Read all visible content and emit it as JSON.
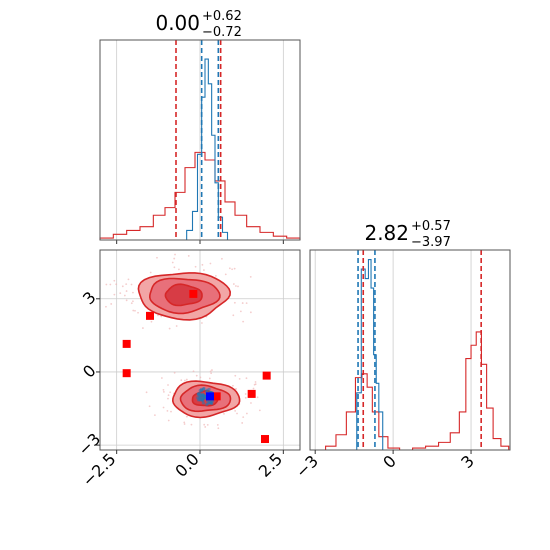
{
  "colors": {
    "prior": "#d62728",
    "posterior": "#1f77b4",
    "contour_fill_light": "#f2a6a6",
    "contour_fill_mid": "#e8707a",
    "contour_fill_dark": "#d73c45",
    "marker_red": "#ff0000",
    "marker_blue": "#0000ff",
    "grid": "#cccccc",
    "axes": "#555555"
  },
  "chart_data": [
    {
      "type": "histogram",
      "panel": "top-left marginal",
      "title_value": "0.00",
      "title_plus": "+0.62",
      "title_minus": "−0.72",
      "xlim": [
        -3.0,
        3.0
      ],
      "grid": true,
      "series": [
        {
          "color": "prior",
          "style": "step",
          "x": [
            -2.8,
            -2.4,
            -2.0,
            -1.6,
            -1.2,
            -0.9,
            -0.6,
            -0.3,
            0.0,
            0.3,
            0.6,
            0.9,
            1.2,
            1.6,
            2.0,
            2.4,
            2.8
          ],
          "values": [
            0.01,
            0.03,
            0.05,
            0.07,
            0.13,
            0.17,
            0.25,
            0.38,
            0.46,
            0.42,
            0.31,
            0.2,
            0.13,
            0.07,
            0.04,
            0.02,
            0.01
          ]
        },
        {
          "color": "posterior",
          "style": "step",
          "x": [
            -0.5,
            -0.3,
            -0.15,
            0.0,
            0.1,
            0.2,
            0.3,
            0.4,
            0.5,
            0.6,
            0.75,
            0.9
          ],
          "values": [
            0.0,
            0.05,
            0.15,
            0.45,
            0.75,
            0.95,
            0.82,
            0.55,
            0.3,
            0.12,
            0.04,
            0.0
          ]
        }
      ],
      "quantile_lines": [
        {
          "color": "prior",
          "x": -0.72
        },
        {
          "color": "prior",
          "x": 0.62
        },
        {
          "color": "posterior",
          "x": 0.05
        },
        {
          "color": "posterior",
          "x": 0.55
        }
      ]
    },
    {
      "type": "contour",
      "panel": "bottom-left joint",
      "xlim": [
        -3.0,
        3.0
      ],
      "ylim": [
        -3.2,
        5.0
      ],
      "x_ticks": [
        "−2.5",
        "0.0",
        "2.5"
      ],
      "x_tick_values": [
        -2.5,
        0.0,
        2.5
      ],
      "y_ticks": [
        "3",
        "0",
        "−3"
      ],
      "y_tick_values": [
        3,
        0,
        -3
      ],
      "grid": true,
      "modes": [
        {
          "cx": -0.5,
          "cy": 3.15,
          "rx": [
            1.35,
            1.05,
            0.55
          ],
          "ry": [
            0.95,
            0.7,
            0.42
          ]
        },
        {
          "cx": 0.15,
          "cy": -1.1,
          "rx": [
            1.0,
            0.75,
            0.38
          ],
          "ry": [
            0.72,
            0.52,
            0.3
          ]
        }
      ],
      "posterior_blob": {
        "cx": 0.2,
        "cy": -1.0,
        "rx": 0.28,
        "ry": 0.35
      },
      "red_markers": [
        {
          "x": -1.5,
          "y": 2.3
        },
        {
          "x": -0.2,
          "y": 3.2
        },
        {
          "x": -2.2,
          "y": 1.15
        },
        {
          "x": -2.2,
          "y": -0.05
        },
        {
          "x": 2.0,
          "y": -0.15
        },
        {
          "x": 1.55,
          "y": -0.9
        },
        {
          "x": 0.5,
          "y": -1.0
        },
        {
          "x": 1.95,
          "y": -2.75
        }
      ],
      "blue_marker": {
        "x": 0.3,
        "y": -1.0
      }
    },
    {
      "type": "histogram",
      "panel": "bottom-right marginal",
      "title_value": "2.82",
      "title_plus": "+0.57",
      "title_minus": "−3.97",
      "xlim": [
        -3.2,
        4.5
      ],
      "x_ticks": [
        "−3",
        "0",
        "3"
      ],
      "x_tick_values": [
        -3,
        0,
        3
      ],
      "grid": true,
      "series": [
        {
          "color": "prior",
          "style": "step",
          "x": [
            -2.8,
            -2.4,
            -2.0,
            -1.6,
            -1.3,
            -1.1,
            -0.9,
            -0.7,
            -0.4,
            0.0,
            0.5,
            1.0,
            1.5,
            2.0,
            2.4,
            2.7,
            2.9,
            3.1,
            3.3,
            3.5,
            3.7,
            4.0,
            4.3
          ],
          "values": [
            0.0,
            0.02,
            0.08,
            0.2,
            0.38,
            0.4,
            0.33,
            0.2,
            0.07,
            0.01,
            0.0,
            0.01,
            0.02,
            0.04,
            0.09,
            0.2,
            0.48,
            0.55,
            0.62,
            0.45,
            0.22,
            0.06,
            0.02
          ]
        },
        {
          "color": "posterior",
          "style": "step",
          "x": [
            -1.5,
            -1.3,
            -1.15,
            -1.0,
            -0.9,
            -0.8,
            -0.7,
            -0.6,
            -0.5,
            -0.3
          ],
          "values": [
            0.0,
            0.3,
            0.95,
            0.9,
            1.0,
            0.85,
            0.5,
            0.35,
            0.2,
            0.0
          ]
        }
      ],
      "quantile_lines": [
        {
          "color": "prior",
          "x": -1.15
        },
        {
          "color": "prior",
          "x": 3.39
        },
        {
          "color": "posterior",
          "x": -1.35
        },
        {
          "color": "posterior",
          "x": -0.7
        }
      ]
    }
  ]
}
